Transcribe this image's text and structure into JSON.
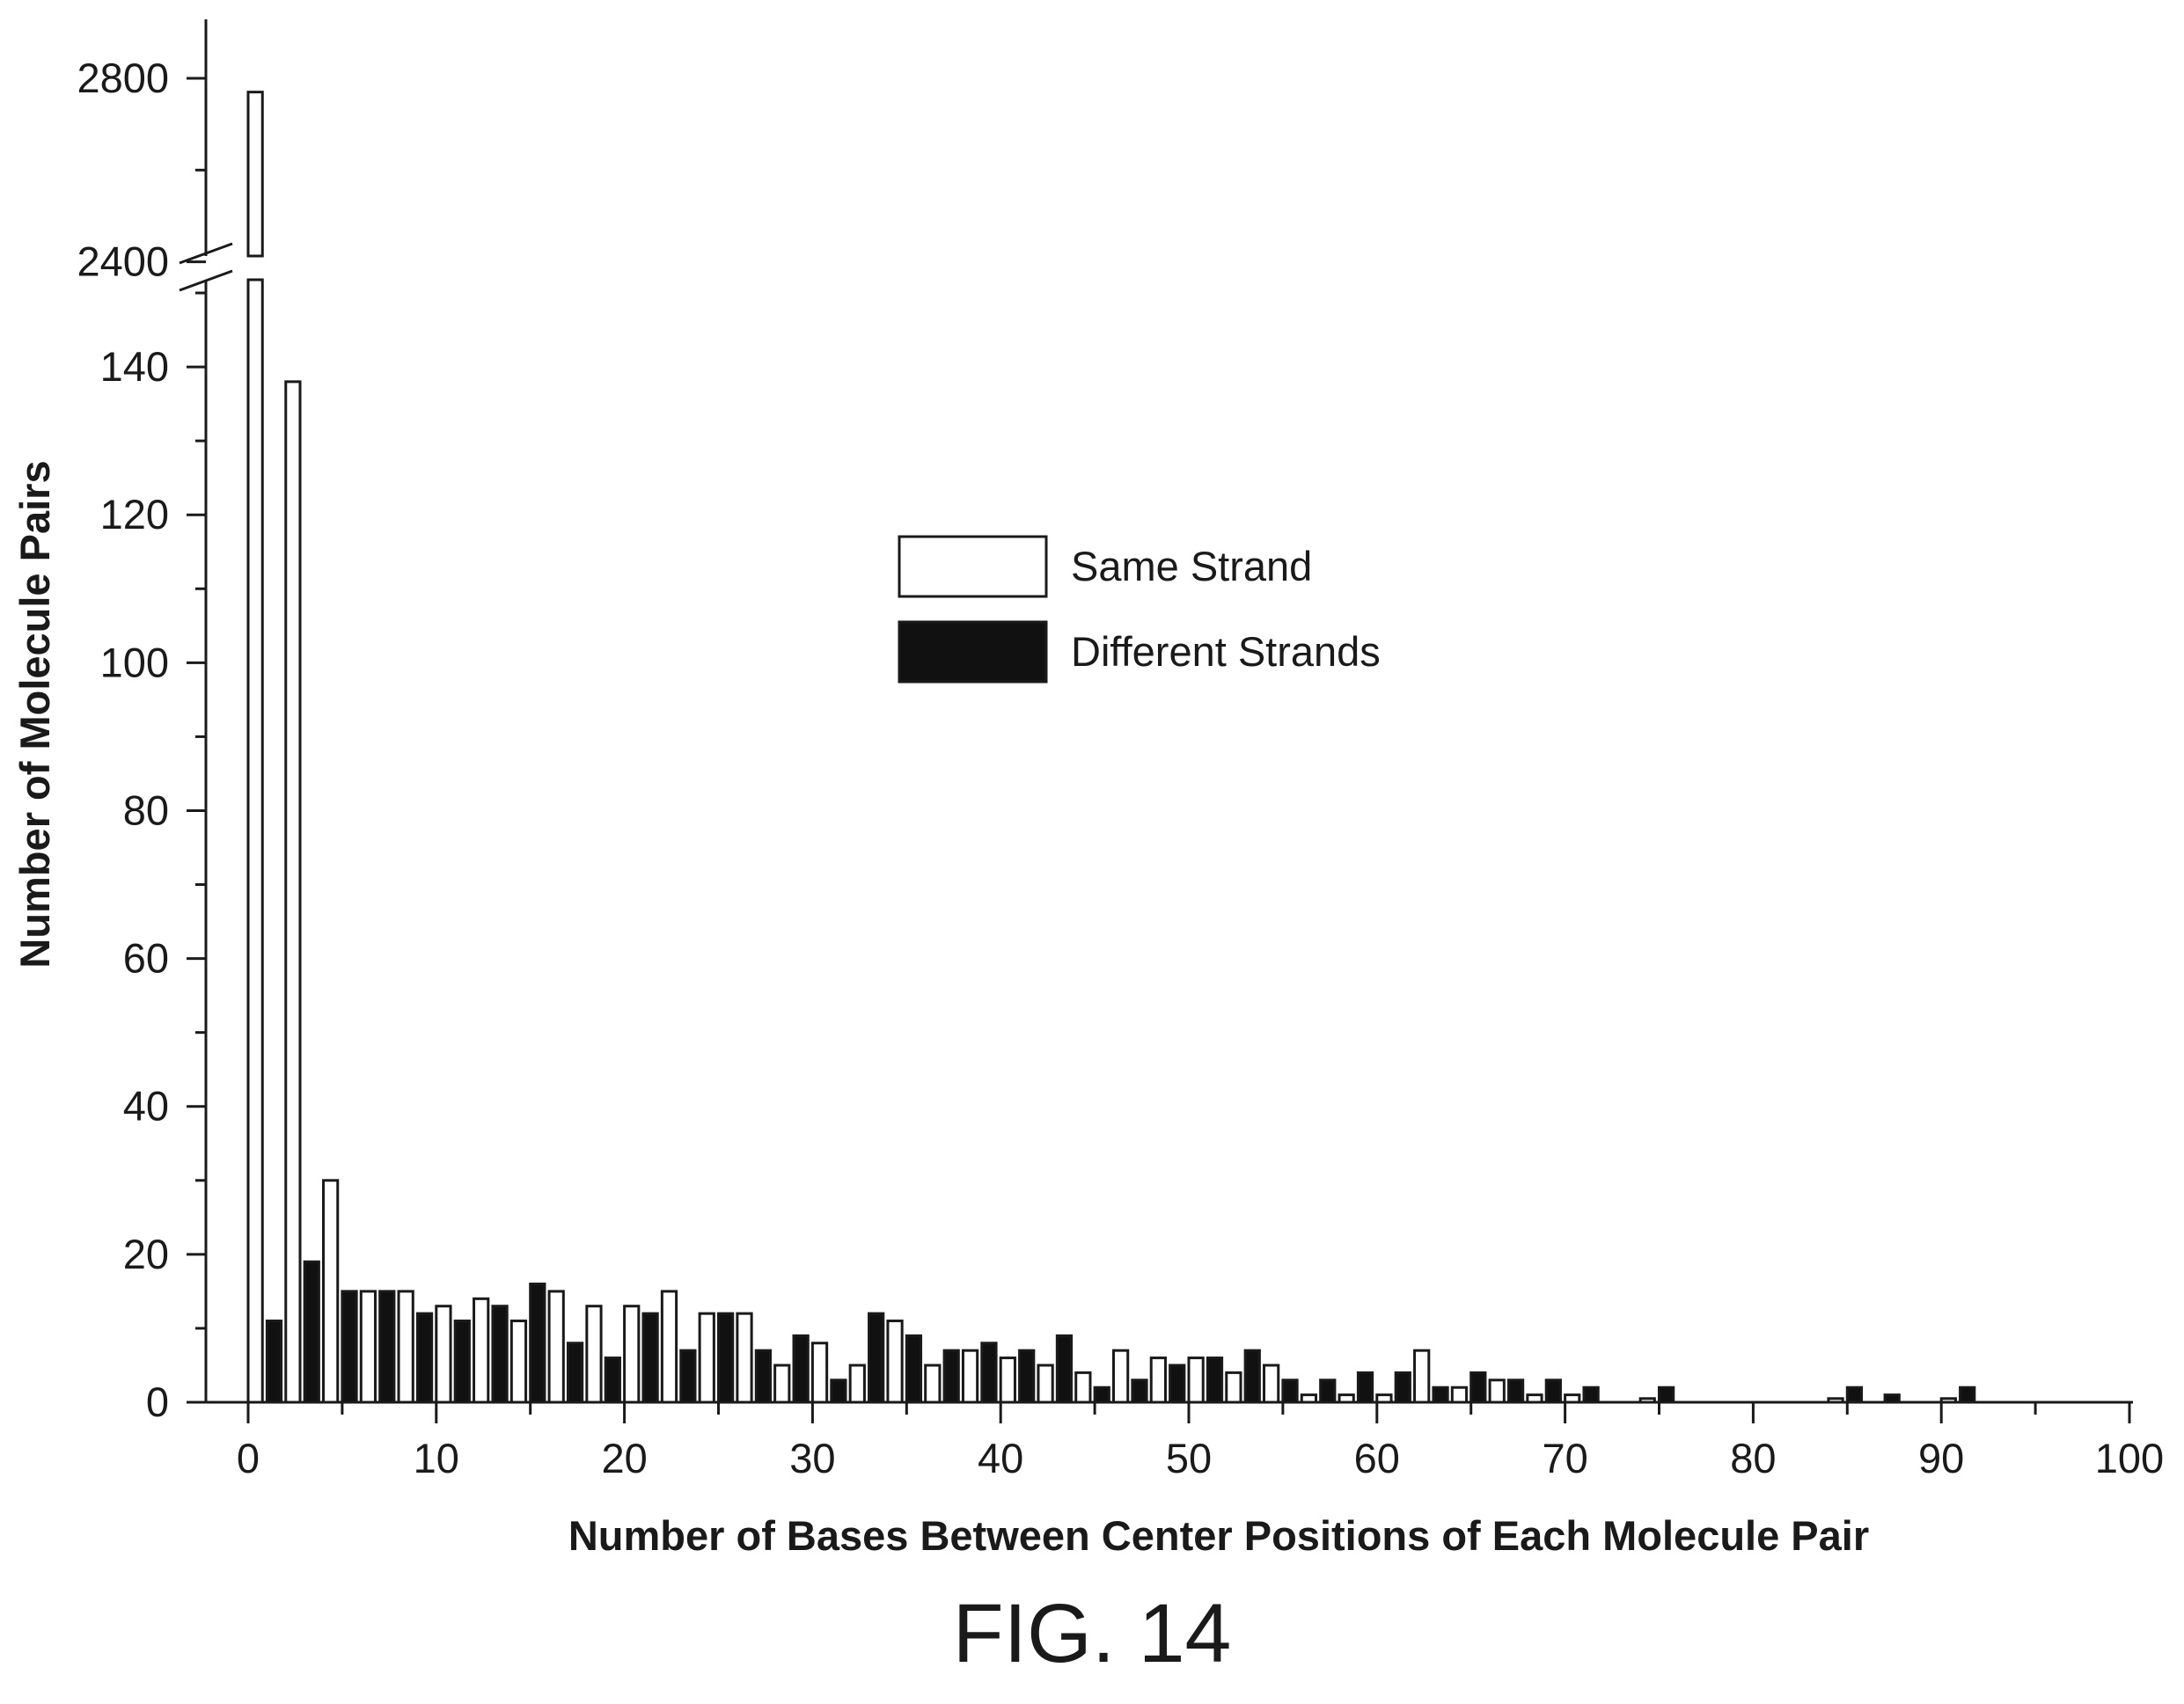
{
  "figure_caption": "FIG. 14",
  "colors": {
    "same_strand_fill": "#ffffff",
    "different_strands_fill": "#111111",
    "stroke": "#1a1a1a"
  },
  "chart_data": {
    "type": "bar",
    "xlabel": "Number of Bases Between Center Positions of Each Molecule Pair",
    "ylabel": "Number of Molecule Pairs",
    "xlim": [
      0,
      100
    ],
    "ylim_lower": [
      0,
      150
    ],
    "ylim_upper": [
      2200,
      2800
    ],
    "y_axis_break": true,
    "x_ticks": [
      "0",
      "10",
      "20",
      "30",
      "40",
      "50",
      "60",
      "70",
      "80",
      "90",
      "100"
    ],
    "y_ticks_lower": [
      "0",
      "20",
      "40",
      "60",
      "80",
      "100",
      "120",
      "140"
    ],
    "y_ticks_upper": [
      "2400",
      "2800"
    ],
    "bin_width": 2,
    "legend": {
      "position": "center",
      "entries": [
        {
          "series": "same",
          "label": "Same Strand"
        },
        {
          "series": "different",
          "label": "Different Strands"
        }
      ]
    },
    "series": [
      {
        "key": "same",
        "name": "Same Strand",
        "x": [
          0,
          2,
          4,
          6,
          8,
          10,
          12,
          14,
          16,
          18,
          20,
          22,
          24,
          26,
          28,
          30,
          32,
          34,
          36,
          38,
          40,
          42,
          44,
          46,
          48,
          50,
          52,
          54,
          56,
          58,
          60,
          62,
          64,
          66,
          68,
          70,
          74,
          84,
          90
        ],
        "values": [
          2770,
          138,
          30,
          15,
          15,
          13,
          14,
          11,
          15,
          13,
          13,
          15,
          12,
          12,
          5,
          8,
          5,
          11,
          5,
          7,
          6,
          5,
          4,
          7,
          6,
          6,
          4,
          5,
          1,
          1,
          1,
          7,
          2,
          3,
          1,
          1,
          0.5,
          0.5,
          0.5
        ]
      },
      {
        "key": "different",
        "name": "Different Strands",
        "x": [
          0,
          2,
          4,
          6,
          8,
          10,
          12,
          14,
          16,
          18,
          20,
          22,
          24,
          26,
          28,
          30,
          32,
          34,
          36,
          38,
          40,
          42,
          44,
          46,
          48,
          50,
          52,
          54,
          56,
          58,
          60,
          62,
          64,
          66,
          68,
          70,
          74,
          84,
          86,
          90
        ],
        "values": [
          11,
          19,
          15,
          15,
          12,
          11,
          13,
          16,
          8,
          6,
          12,
          7,
          12,
          7,
          9,
          3,
          12,
          9,
          7,
          8,
          7,
          9,
          2,
          3,
          5,
          6,
          7,
          3,
          3,
          4,
          4,
          2,
          4,
          3,
          3,
          2,
          2,
          2,
          1,
          2
        ]
      }
    ]
  }
}
